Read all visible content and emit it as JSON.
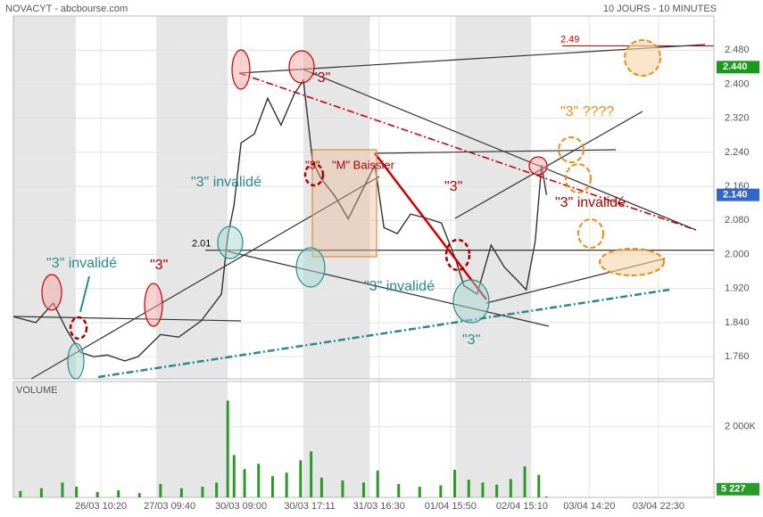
{
  "header": {
    "title": "NOVACYT - abcbourse.com",
    "period": "10 JOURS - 10 MINUTES"
  },
  "chart_data": [
    {
      "type": "line",
      "color": "#333",
      "x": [
        0,
        3.2,
        5.7,
        7.6,
        9.6,
        11.5,
        13.4,
        15.9,
        17.8,
        19.7,
        21.0,
        23.6,
        26.8,
        29.7,
        30.6,
        31.5,
        32.5,
        34.4,
        36.3,
        38.2,
        40.1,
        41.4,
        42.7,
        43.9,
        45.9,
        47.8,
        49.7,
        51.6,
        52.9,
        54.8,
        56.7,
        59.2,
        61.1,
        63.1,
        64.3,
        66.2,
        68.2,
        70.1,
        72.0,
        73.2,
        74.5,
        75.4,
        76.1
      ],
      "values": [
        1.854,
        1.84,
        1.886,
        1.823,
        1.77,
        1.76,
        1.764,
        1.75,
        1.76,
        1.791,
        1.812,
        1.806,
        1.844,
        1.907,
        2.043,
        2.116,
        2.262,
        2.283,
        2.367,
        2.304,
        2.377,
        2.409,
        2.22,
        2.179,
        2.137,
        2.084,
        2.147,
        2.21,
        2.063,
        2.049,
        2.095,
        2.084,
        2.074,
        1.99,
        1.927,
        1.907,
        2.022,
        1.97,
        1.938,
        1.917,
        2.032,
        2.21,
        2.14
      ],
      "xlim": [
        0,
        100
      ],
      "ylim": [
        1.708,
        2.56
      ],
      "xticks": [
        {
          "value": 12.5,
          "label": "26/03 10:20"
        },
        {
          "value": 22.3,
          "label": "27/03 09:40"
        },
        {
          "value": 32.5,
          "label": "30/03 09:00"
        },
        {
          "value": 42.3,
          "label": "30/03 17:11"
        },
        {
          "value": 52.2,
          "label": "31/03 16:30"
        },
        {
          "value": 62.4,
          "label": "01/04 15:50"
        },
        {
          "value": 72.6,
          "label": "02/04 15:10"
        },
        {
          "value": 82.2,
          "label": "03/04 14:20"
        },
        {
          "value": 92.1,
          "label": "03/04 22:30"
        }
      ],
      "yticks": [
        {
          "value": 1.76,
          "label": "1.760"
        },
        {
          "value": 1.84,
          "label": "1.840"
        },
        {
          "value": 1.92,
          "label": "1.920"
        },
        {
          "value": 2.0,
          "label": "2.000"
        },
        {
          "value": 2.08,
          "label": "2.080"
        },
        {
          "value": 2.16,
          "label": "2.160"
        },
        {
          "value": 2.24,
          "label": "2.240"
        },
        {
          "value": 2.32,
          "label": "2.320"
        },
        {
          "value": 2.4,
          "label": "2.400"
        },
        {
          "value": 2.48,
          "label": "2.480"
        }
      ],
      "grid": true,
      "sessions": [
        [
          0,
          8.9
        ],
        [
          20.4,
          30.6
        ],
        [
          41.4,
          50.9
        ],
        [
          63.1,
          73.9
        ]
      ],
      "levels": [
        {
          "value": 2.49,
          "color": "#c00"
        },
        {
          "value": 2.01,
          "color": "#000"
        }
      ],
      "markers": [
        {
          "value": 2.44,
          "label": "2.440",
          "color": "#1a9a1a"
        },
        {
          "value": 2.14,
          "label": "2.140",
          "color": "#3366cc"
        }
      ],
      "annotations": [
        "\"3\" invalidé",
        "\"3\"",
        "\"3\" invalidé",
        "\"3\"",
        "\"3\"",
        "\"M\" Baissier",
        "\"3\"",
        "\"3\" invalidé",
        "\"3\"",
        "\"3\" ????",
        "\"3\" invalidé"
      ]
    },
    {
      "type": "bar",
      "title": "VOLUME",
      "color": "#2a9a2a",
      "x": [
        1,
        4,
        7,
        9,
        12,
        15,
        18,
        21,
        24,
        27,
        29,
        30.6,
        31.5,
        33,
        35,
        37,
        39,
        41,
        42.5,
        44,
        47,
        50,
        52,
        55,
        58,
        61,
        63,
        65,
        67,
        69,
        71,
        73,
        75,
        76.1
      ],
      "values": [
        180,
        260,
        420,
        300,
        150,
        200,
        120,
        380,
        260,
        300,
        420,
        2740,
        1200,
        800,
        950,
        600,
        700,
        1050,
        1300,
        560,
        480,
        420,
        760,
        380,
        300,
        340,
        780,
        500,
        420,
        360,
        520,
        880,
        640,
        5.227
      ],
      "value_labels": {
        "33": "5 227"
      },
      "ylim": [
        0,
        3280
      ],
      "yticks": [
        {
          "value": 2000,
          "label": "2 000K"
        }
      ]
    }
  ]
}
